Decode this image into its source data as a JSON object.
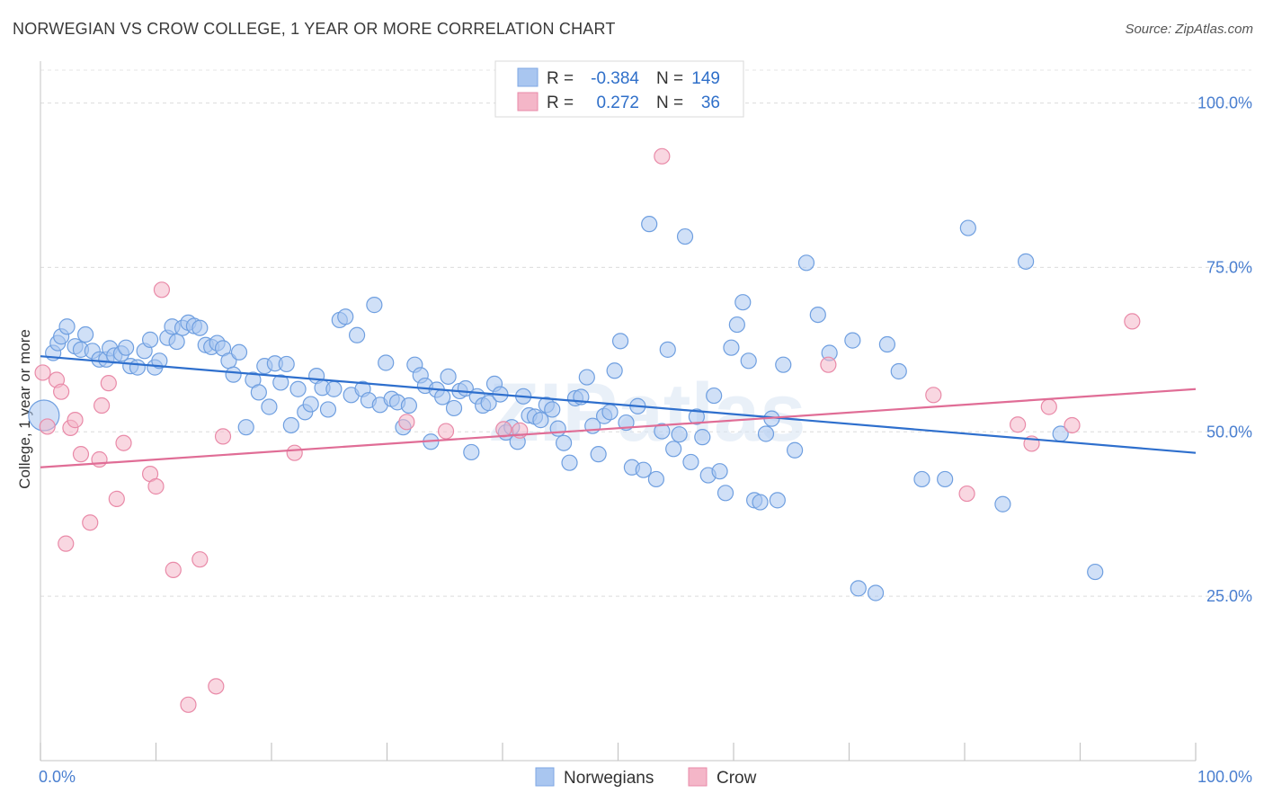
{
  "header": {
    "title": "NORWEGIAN VS CROW COLLEGE, 1 YEAR OR MORE CORRELATION CHART",
    "source": "Source: ZipAtlas.com"
  },
  "watermark": "ZIPatlas",
  "legend_top": {
    "rows": [
      {
        "r_label": "R =",
        "r_value": "-0.384",
        "n_label": "N =",
        "n_value": "149",
        "color": "#a9c6f0"
      },
      {
        "r_label": "R =",
        "r_value": "0.272",
        "n_label": "N =",
        "n_value": "36",
        "color": "#f4b6c8"
      }
    ]
  },
  "legend_bottom": {
    "items": [
      {
        "label": "Norwegians",
        "color": "#a9c6f0"
      },
      {
        "label": "Crow",
        "color": "#f4b6c8"
      }
    ]
  },
  "chart_data": {
    "type": "scatter",
    "title": "NORWEGIAN VS CROW COLLEGE, 1 YEAR OR MORE CORRELATION CHART",
    "xlabel": "",
    "ylabel": "College, 1 year or more",
    "xlim": [
      0,
      100
    ],
    "ylim": [
      0,
      105
    ],
    "x_tick_labels": [
      "0.0%",
      "100.0%"
    ],
    "y_ticks": [
      {
        "value": 25,
        "label": "25.0%"
      },
      {
        "value": 50,
        "label": "50.0%"
      },
      {
        "value": 75,
        "label": "75.0%"
      },
      {
        "value": 100,
        "label": "100.0%"
      }
    ],
    "grid": "horizontal dashed",
    "series": [
      {
        "name": "Norwegians",
        "color": "#6f9fe0",
        "fill": "#a9c6f0",
        "trend": {
          "x0": 0,
          "y0": 61.5,
          "x1": 100,
          "y1": 46.8,
          "color": "#2e6fcd"
        },
        "points": [
          [
            0.3,
            52.5
          ],
          [
            1.1,
            62
          ],
          [
            1.5,
            63.5
          ],
          [
            1.8,
            64.5
          ],
          [
            2.3,
            66
          ],
          [
            3.0,
            63
          ],
          [
            3.5,
            62.5
          ],
          [
            3.9,
            64.8
          ],
          [
            4.5,
            62.3
          ],
          [
            5.1,
            61
          ],
          [
            5.7,
            61
          ],
          [
            6.0,
            62.7
          ],
          [
            6.4,
            61.6
          ],
          [
            7.0,
            61.9
          ],
          [
            7.4,
            62.8
          ],
          [
            7.8,
            60
          ],
          [
            8.4,
            59.8
          ],
          [
            9.0,
            62.3
          ],
          [
            9.5,
            64
          ],
          [
            9.9,
            59.8
          ],
          [
            10.3,
            60.8
          ],
          [
            11.0,
            64.3
          ],
          [
            11.4,
            66
          ],
          [
            11.8,
            63.7
          ],
          [
            12.3,
            65.8
          ],
          [
            12.8,
            66.6
          ],
          [
            13.3,
            66.1
          ],
          [
            13.8,
            65.8
          ],
          [
            14.3,
            63.2
          ],
          [
            14.8,
            62.9
          ],
          [
            15.3,
            63.5
          ],
          [
            15.8,
            62.7
          ],
          [
            16.3,
            60.8
          ],
          [
            16.7,
            58.7
          ],
          [
            17.2,
            62.1
          ],
          [
            17.8,
            50.7
          ],
          [
            18.4,
            57.9
          ],
          [
            18.9,
            56
          ],
          [
            19.4,
            60
          ],
          [
            19.8,
            53.8
          ],
          [
            20.3,
            60.4
          ],
          [
            20.8,
            57.5
          ],
          [
            21.3,
            60.3
          ],
          [
            21.7,
            51
          ],
          [
            22.3,
            56.5
          ],
          [
            22.9,
            53
          ],
          [
            23.4,
            54.2
          ],
          [
            23.9,
            58.5
          ],
          [
            24.4,
            56.7
          ],
          [
            24.9,
            53.4
          ],
          [
            25.4,
            56.5
          ],
          [
            25.9,
            67
          ],
          [
            26.4,
            67.5
          ],
          [
            26.9,
            55.6
          ],
          [
            27.4,
            64.7
          ],
          [
            27.9,
            56.5
          ],
          [
            28.4,
            54.8
          ],
          [
            28.9,
            69.3
          ],
          [
            29.4,
            54.1
          ],
          [
            29.9,
            60.5
          ],
          [
            30.4,
            55
          ],
          [
            30.9,
            54.5
          ],
          [
            31.4,
            50.7
          ],
          [
            31.9,
            54
          ],
          [
            32.4,
            60.2
          ],
          [
            32.9,
            58.6
          ],
          [
            33.3,
            57
          ],
          [
            33.8,
            48.5
          ],
          [
            34.3,
            56.4
          ],
          [
            34.8,
            55.3
          ],
          [
            35.3,
            58.4
          ],
          [
            35.8,
            53.6
          ],
          [
            36.3,
            56.2
          ],
          [
            36.8,
            56.6
          ],
          [
            37.3,
            46.9
          ],
          [
            37.8,
            55.4
          ],
          [
            38.3,
            54
          ],
          [
            38.8,
            54.4
          ],
          [
            39.3,
            57.3
          ],
          [
            39.8,
            55.7
          ],
          [
            40.3,
            49.9
          ],
          [
            40.8,
            50.7
          ],
          [
            41.3,
            48.5
          ],
          [
            41.8,
            55.4
          ],
          [
            42.3,
            52.5
          ],
          [
            42.8,
            52.3
          ],
          [
            43.3,
            51.8
          ],
          [
            43.8,
            54.1
          ],
          [
            44.3,
            53.4
          ],
          [
            44.8,
            50.5
          ],
          [
            45.3,
            48.3
          ],
          [
            45.8,
            45.3
          ],
          [
            46.3,
            55.1
          ],
          [
            46.8,
            55.3
          ],
          [
            47.3,
            58.3
          ],
          [
            47.8,
            50.9
          ],
          [
            48.3,
            46.6
          ],
          [
            48.8,
            52.4
          ],
          [
            49.3,
            53
          ],
          [
            49.7,
            59.3
          ],
          [
            50.2,
            63.8
          ],
          [
            50.7,
            51.4
          ],
          [
            51.2,
            44.6
          ],
          [
            51.7,
            53.9
          ],
          [
            52.2,
            44.2
          ],
          [
            52.7,
            81.6
          ],
          [
            53.3,
            42.8
          ],
          [
            53.8,
            50.1
          ],
          [
            54.3,
            62.5
          ],
          [
            54.8,
            47.4
          ],
          [
            55.3,
            49.6
          ],
          [
            55.8,
            79.7
          ],
          [
            56.3,
            45.4
          ],
          [
            56.8,
            52.3
          ],
          [
            57.3,
            49.2
          ],
          [
            57.8,
            43.4
          ],
          [
            58.3,
            55.5
          ],
          [
            58.8,
            44
          ],
          [
            59.3,
            40.7
          ],
          [
            59.8,
            62.8
          ],
          [
            60.3,
            66.3
          ],
          [
            60.8,
            69.7
          ],
          [
            61.3,
            60.8
          ],
          [
            61.8,
            39.6
          ],
          [
            62.3,
            39.3
          ],
          [
            62.8,
            49.7
          ],
          [
            63.3,
            52
          ],
          [
            63.8,
            39.6
          ],
          [
            64.3,
            60.2
          ],
          [
            65.3,
            47.2
          ],
          [
            66.3,
            75.7
          ],
          [
            67.3,
            67.8
          ],
          [
            68.3,
            62
          ],
          [
            70.3,
            63.9
          ],
          [
            70.8,
            26.2
          ],
          [
            72.3,
            25.5
          ],
          [
            73.3,
            63.3
          ],
          [
            74.3,
            59.2
          ],
          [
            76.3,
            42.8
          ],
          [
            78.3,
            42.8
          ],
          [
            80.3,
            81
          ],
          [
            83.3,
            39
          ],
          [
            85.3,
            75.9
          ],
          [
            88.3,
            49.7
          ],
          [
            91.3,
            28.7
          ]
        ]
      },
      {
        "name": "Crow",
        "color": "#e98aa8",
        "fill": "#f4b6c8",
        "trend": {
          "x0": 0,
          "y0": 44.6,
          "x1": 100,
          "y1": 56.5,
          "color": "#e06d96"
        },
        "points": [
          [
            0.2,
            59
          ],
          [
            0.6,
            50.8
          ],
          [
            1.4,
            57.9
          ],
          [
            1.8,
            56.1
          ],
          [
            2.2,
            33
          ],
          [
            2.6,
            50.6
          ],
          [
            3.0,
            51.8
          ],
          [
            3.5,
            46.6
          ],
          [
            4.3,
            36.2
          ],
          [
            5.1,
            45.8
          ],
          [
            5.3,
            54
          ],
          [
            5.9,
            57.4
          ],
          [
            6.6,
            39.8
          ],
          [
            7.2,
            48.3
          ],
          [
            9.5,
            43.6
          ],
          [
            10.0,
            41.7
          ],
          [
            10.5,
            71.6
          ],
          [
            11.5,
            29
          ],
          [
            12.8,
            8.5
          ],
          [
            13.8,
            30.6
          ],
          [
            15.2,
            11.3
          ],
          [
            15.8,
            49.3
          ],
          [
            22.0,
            46.8
          ],
          [
            31.7,
            51.5
          ],
          [
            35.1,
            50.1
          ],
          [
            40.1,
            50.4
          ],
          [
            41.5,
            50.2
          ],
          [
            53.8,
            91.9
          ],
          [
            68.2,
            60.2
          ],
          [
            77.3,
            55.6
          ],
          [
            80.2,
            40.6
          ],
          [
            84.6,
            51.1
          ],
          [
            85.8,
            48.2
          ],
          [
            87.3,
            53.8
          ],
          [
            89.3,
            51
          ],
          [
            94.5,
            66.8
          ]
        ]
      }
    ]
  }
}
